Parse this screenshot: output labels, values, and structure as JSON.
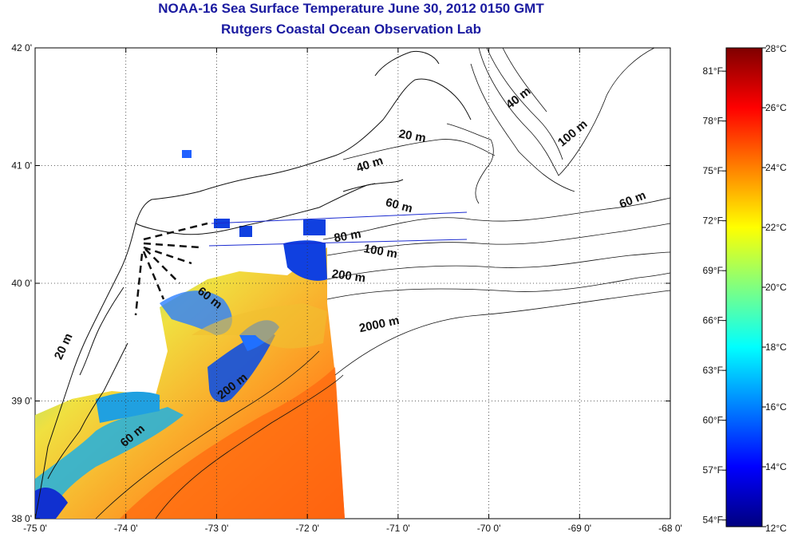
{
  "title": "NOAA-16 Sea Surface Temperature June 30, 2012 0150 GMT",
  "subtitle": "Rutgers Coastal Ocean Observation Lab",
  "map": {
    "lon_ticks": [
      "-75 0'",
      "-74 0'",
      "-73 0'",
      "-72 0'",
      "-71 0'",
      "-70 0'",
      "-69 0'",
      "-68 0'"
    ],
    "lat_ticks": [
      "42 0'",
      "41 0'",
      "40 0'",
      "39 0'",
      "38 0'"
    ],
    "lon_range": [
      -75,
      -68
    ],
    "lat_range": [
      38,
      42
    ],
    "grid": "dotted",
    "contour_labels": [
      {
        "text": "40 m",
        "lon": -69.65,
        "lat": 41.55,
        "angle": -38
      },
      {
        "text": "20 m",
        "lon": -70.85,
        "lat": 41.22,
        "angle": 10
      },
      {
        "text": "100 m",
        "lon": -69.05,
        "lat": 41.25,
        "angle": -40
      },
      {
        "text": "40 m",
        "lon": -71.3,
        "lat": 40.98,
        "angle": -18
      },
      {
        "text": "60 m",
        "lon": -71.0,
        "lat": 40.63,
        "angle": 15
      },
      {
        "text": "60 m",
        "lon": -68.4,
        "lat": 40.68,
        "angle": -22
      },
      {
        "text": "80 m",
        "lon": -71.55,
        "lat": 40.37,
        "angle": -10
      },
      {
        "text": "100 m",
        "lon": -71.2,
        "lat": 40.24,
        "angle": 10
      },
      {
        "text": "200 m",
        "lon": -71.55,
        "lat": 40.03,
        "angle": 8
      },
      {
        "text": "2000 m",
        "lon": -71.2,
        "lat": 39.62,
        "angle": -12
      },
      {
        "text": "60 m",
        "lon": -73.1,
        "lat": 39.85,
        "angle": 38
      },
      {
        "text": "20 m",
        "lon": -74.65,
        "lat": 39.45,
        "angle": -65
      },
      {
        "text": "200 m",
        "lon": -72.8,
        "lat": 39.1,
        "angle": -38
      },
      {
        "text": "60 m",
        "lon": -73.9,
        "lat": 38.68,
        "angle": -40
      }
    ]
  },
  "colorbar": {
    "fahrenheit_ticks": [
      "81°F",
      "78°F",
      "75°F",
      "72°F",
      "69°F",
      "66°F",
      "63°F",
      "60°F",
      "57°F",
      "54°F"
    ],
    "celsius_ticks": [
      "28°C",
      "26°C",
      "24°C",
      "22°C",
      "20°C",
      "18°C",
      "16°C",
      "14°C",
      "12°C"
    ],
    "range_celsius": [
      12,
      28
    ],
    "colormap": [
      "#00007f",
      "#0000ff",
      "#0080ff",
      "#00ffff",
      "#80ff80",
      "#ffff00",
      "#ff8000",
      "#ff0000",
      "#7f0000"
    ]
  },
  "colors": {
    "title": "#1a1aa0",
    "coastline": "#111111",
    "cable_lines": "#1a2ad0"
  }
}
